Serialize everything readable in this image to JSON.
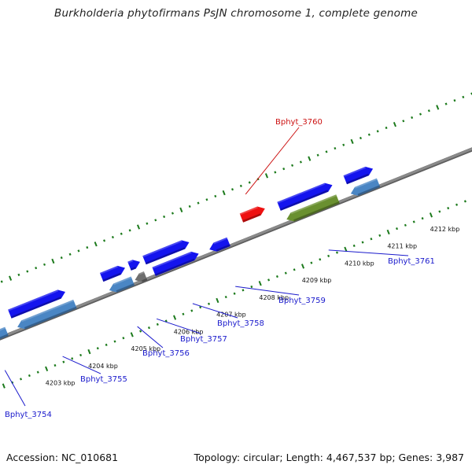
{
  "title": "Burkholderia phytofirmans PsJN chromosome 1, complete genome",
  "footer": {
    "accession": "Accession: NC_010681",
    "summary": "Topology: circular; Length: 4,467,537 bp; Genes: 3,987"
  },
  "colors": {
    "forward_gene": "#1414ee",
    "reverse_gene": "#4a86c4",
    "highlight_gene": "#ee1111",
    "rna_gene": "#6a9030",
    "pseudo_gene": "#6e6e6e",
    "backbone": "#8a8a8a",
    "tick": "#1c7a1c",
    "label_default": "#1a1acc",
    "label_highlight": "#cc1111"
  },
  "axis": {
    "unit_label_suffix": "kbp",
    "ticks": [
      {
        "kbp": 4203,
        "label": "4203 kbp"
      },
      {
        "kbp": 4204,
        "label": "4204 kbp"
      },
      {
        "kbp": 4205,
        "label": "4205 kbp"
      },
      {
        "kbp": 4206,
        "label": "4206 kbp"
      },
      {
        "kbp": 4207,
        "label": "4207 kbp"
      },
      {
        "kbp": 4208,
        "label": "4208 kbp"
      },
      {
        "kbp": 4209,
        "label": "4209 kbp"
      },
      {
        "kbp": 4210,
        "label": "4210 kbp"
      },
      {
        "kbp": 4211,
        "label": "4211 kbp"
      },
      {
        "kbp": 4212,
        "label": "4212 kbp"
      }
    ]
  },
  "genes": [
    {
      "id": "g0",
      "start": 4201.4,
      "end": 4202.45,
      "strand": "+",
      "type": "forward",
      "label": ""
    },
    {
      "id": "g1",
      "start": 4201.4,
      "end": 4202.5,
      "strand": "-",
      "type": "reverse",
      "label": ""
    },
    {
      "id": "g2",
      "start": 4202.7,
      "end": 4204.0,
      "strand": "+",
      "type": "forward",
      "label": "Bphyt_3755",
      "label_ref": "g3"
    },
    {
      "id": "g3",
      "start": 4202.75,
      "end": 4204.1,
      "strand": "-",
      "type": "reverse",
      "label": ""
    },
    {
      "id": "g4",
      "start": 4204.85,
      "end": 4205.4,
      "strand": "+",
      "type": "forward",
      "label": ""
    },
    {
      "id": "g5",
      "start": 4204.9,
      "end": 4205.45,
      "strand": "-",
      "type": "reverse",
      "label": "Bphyt_3756"
    },
    {
      "id": "g6",
      "start": 4205.5,
      "end": 4205.75,
      "strand": "+",
      "type": "forward",
      "label": ""
    },
    {
      "id": "g7",
      "start": 4205.5,
      "end": 4205.75,
      "strand": "-",
      "type": "pseudo",
      "label": "Bphyt_3757"
    },
    {
      "id": "g8",
      "start": 4205.85,
      "end": 4206.9,
      "strand": "+",
      "type": "forward",
      "label": ""
    },
    {
      "id": "g9",
      "start": 4205.95,
      "end": 4207.0,
      "strand": "+",
      "type": "forward",
      "label": "Bphyt_3758",
      "row": "inner"
    },
    {
      "id": "g10",
      "start": 4207.25,
      "end": 4207.7,
      "strand": "-",
      "type": "forward",
      "label": "Bphyt_3759",
      "row": "inner"
    },
    {
      "id": "g11",
      "start": 4208.15,
      "end": 4208.7,
      "strand": "-",
      "type": "highlight",
      "label": "Bphyt_3760"
    },
    {
      "id": "g12",
      "start": 4209.0,
      "end": 4210.25,
      "strand": "+",
      "type": "forward",
      "label": ""
    },
    {
      "id": "g13",
      "start": 4209.05,
      "end": 4210.25,
      "strand": "-",
      "type": "rna",
      "label": "Bphyt_3761"
    },
    {
      "id": "g14",
      "start": 4210.55,
      "end": 4211.2,
      "strand": "+",
      "type": "forward",
      "label": ""
    },
    {
      "id": "g15",
      "start": 4210.55,
      "end": 4211.2,
      "strand": "-",
      "type": "reverse",
      "label": ""
    }
  ],
  "edge_labels": [
    {
      "text": "Bphyt_3754",
      "kbp": 4202.15
    }
  ]
}
